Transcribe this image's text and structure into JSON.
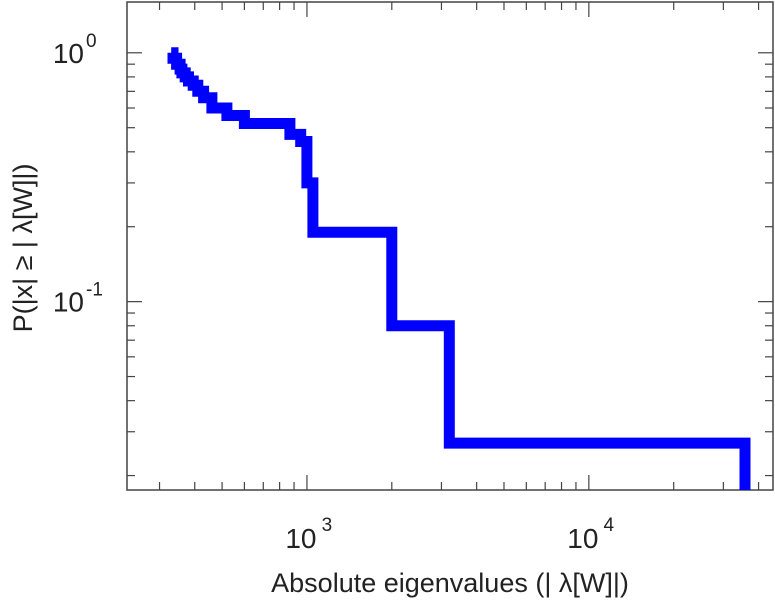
{
  "chart_data": {
    "type": "line",
    "title": "",
    "xlabel": "Absolute eigenvalues (|     λ[W]|)",
    "ylabel": "P(|x|  ≥ | λ[W]|)",
    "x_scale": "log",
    "y_scale": "log",
    "xlim": [
      230,
      45000
    ],
    "ylim": [
      0.0175,
      1.6
    ],
    "grid": false,
    "legend": "none",
    "x_ticks": [
      {
        "base": "10",
        "exp": "3",
        "value": 1000
      },
      {
        "base": "10",
        "exp": "4",
        "value": 10000
      }
    ],
    "y_ticks": [
      {
        "base": "10",
        "exp": "0",
        "value": 1
      },
      {
        "base": "10",
        "exp": "-1",
        "value": 0.1
      }
    ],
    "series": [
      {
        "color": "#0000ff",
        "step": true,
        "x": [
          330,
          335,
          345,
          355,
          360,
          370,
          380,
          395,
          410,
          430,
          460,
          520,
          600,
          700,
          870,
          950,
          1000,
          1050,
          1500,
          2000,
          2500,
          3200,
          8000,
          15000,
          25000,
          35800,
          35800
        ],
        "y": [
          1.0,
          0.95,
          0.9,
          0.86,
          0.83,
          0.8,
          0.77,
          0.74,
          0.7,
          0.66,
          0.6,
          0.56,
          0.52,
          0.52,
          0.47,
          0.44,
          0.3,
          0.19,
          0.19,
          0.08,
          0.08,
          0.027,
          0.027,
          0.027,
          0.027,
          0.027,
          0.0175
        ]
      }
    ]
  }
}
